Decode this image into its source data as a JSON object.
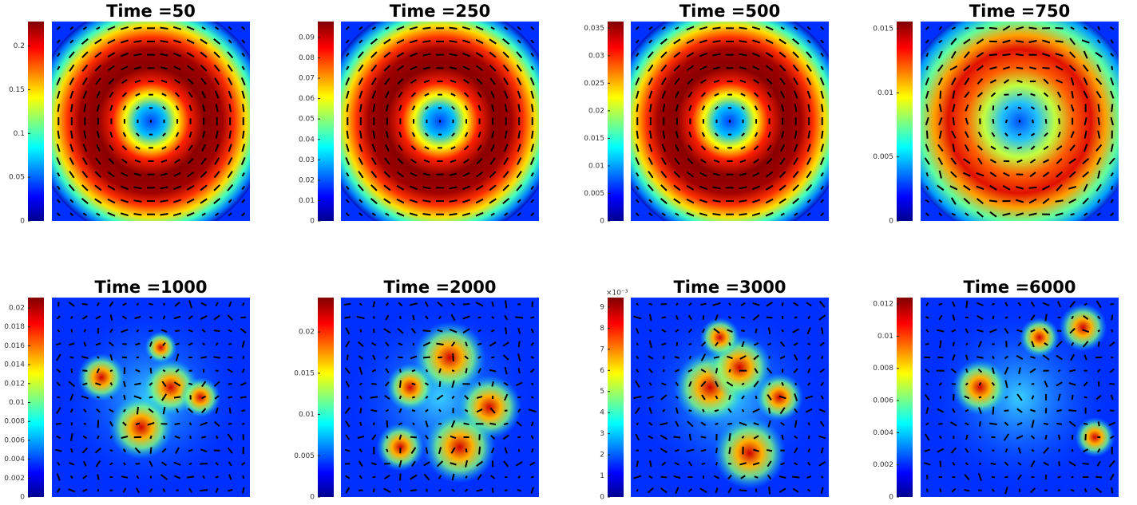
{
  "chart_data": [
    {
      "type": "heatmap",
      "title": "Time =50",
      "clim": [
        0,
        0.228
      ],
      "cticks": [
        0,
        0.05,
        0.1,
        0.15,
        0.2
      ]
    },
    {
      "type": "heatmap",
      "title": "Time =250",
      "clim": [
        0,
        0.0978
      ],
      "cticks": [
        0,
        0.01,
        0.02,
        0.03,
        0.04,
        0.05,
        0.06,
        0.07,
        0.08,
        0.09
      ]
    },
    {
      "type": "heatmap",
      "title": "Time =500",
      "clim": [
        0,
        0.0362
      ],
      "cticks": [
        0,
        0.005,
        0.01,
        0.015,
        0.02,
        0.025,
        0.03,
        0.035
      ]
    },
    {
      "type": "heatmap",
      "title": "Time =750",
      "clim": [
        0,
        0.01556
      ],
      "cticks": [
        0,
        0.005,
        0.01,
        0.015
      ]
    },
    {
      "type": "heatmap",
      "title": "Time =1000",
      "clim": [
        0,
        0.0211
      ],
      "cticks": [
        0,
        0.002,
        0.004,
        0.006,
        0.008,
        0.01,
        0.012,
        0.014,
        0.016,
        0.018,
        0.02
      ]
    },
    {
      "type": "heatmap",
      "title": "Time =2000",
      "clim": [
        0,
        0.02417
      ],
      "cticks": [
        0,
        0.005,
        0.01,
        0.015,
        0.02
      ]
    },
    {
      "type": "heatmap",
      "title": "Time =3000",
      "clim": [
        0,
        9.45
      ],
      "cticks": [
        0,
        1,
        2,
        3,
        4,
        5,
        6,
        7,
        8,
        9
      ],
      "cscale_label": "×10⁻³"
    },
    {
      "type": "heatmap",
      "title": "Time =6000",
      "clim": [
        0,
        0.0124
      ],
      "cticks": [
        0,
        0.002,
        0.004,
        0.006,
        0.008,
        0.01,
        0.012
      ]
    }
  ]
}
